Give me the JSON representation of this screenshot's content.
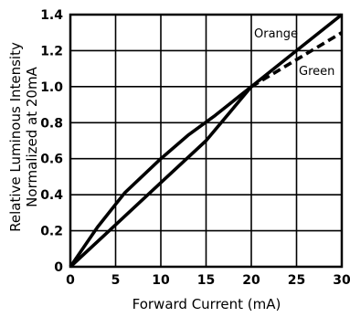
{
  "chart_data": {
    "type": "line",
    "xlabel": "Forward Current (mA)",
    "ylabel_line1": "Relative Luminous Intensity",
    "ylabel_line2": "Normalized at 20mA",
    "xlim": [
      0,
      30
    ],
    "ylim": [
      0,
      1.4
    ],
    "x_ticks": [
      "0",
      "5",
      "10",
      "15",
      "20",
      "25",
      "30"
    ],
    "y_ticks": [
      "0",
      "0.2",
      "0.4",
      "0.6",
      "0.8",
      "1.0",
      "1.2",
      "1.4"
    ],
    "grid": true,
    "series": [
      {
        "name": "Orange",
        "style": "solid",
        "points": [
          [
            0,
            0
          ],
          [
            5,
            0.233
          ],
          [
            10,
            0.467
          ],
          [
            15,
            0.7
          ],
          [
            20,
            1.0
          ],
          [
            25,
            1.2
          ],
          [
            30,
            1.4
          ]
        ]
      },
      {
        "name": "Green",
        "style": "dashed",
        "points": [
          [
            0,
            0
          ],
          [
            3,
            0.22
          ],
          [
            6,
            0.41
          ],
          [
            10,
            0.6
          ],
          [
            13,
            0.73
          ],
          [
            16,
            0.84
          ],
          [
            20,
            1.0
          ],
          [
            25,
            1.15
          ],
          [
            30,
            1.3
          ]
        ]
      }
    ]
  }
}
